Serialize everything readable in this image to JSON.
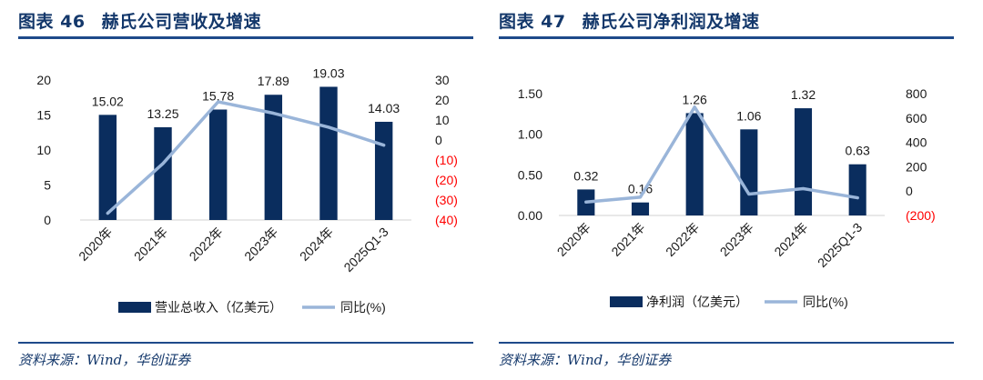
{
  "figures": [
    {
      "label": "图表 46",
      "title": "赫氏公司营收及增速",
      "source": "资料来源：Wind，华创证券",
      "colors": {
        "bar": "#0a2d5e",
        "line": "#9ab5d9",
        "negative_tick": "#ff0000",
        "rule": "#1e4a8a"
      },
      "chart_data": {
        "type": "bar+line",
        "categories": [
          "2020年",
          "2021年",
          "2022年",
          "2023年",
          "2024年",
          "2025Q1-3"
        ],
        "series": [
          {
            "name": "营业总收入（亿美元）",
            "type": "bar",
            "axis": "left",
            "values": [
              15.02,
              13.25,
              15.78,
              17.89,
              19.03,
              14.03
            ],
            "labels": [
              "15.02",
              "13.25",
              "15.78",
              "17.89",
              "19.03",
              "14.03"
            ]
          },
          {
            "name": "同比(%)",
            "type": "line",
            "axis": "right",
            "values": [
              -36.6,
              -11.8,
              19.1,
              13.4,
              6.4,
              -2.6
            ]
          }
        ],
        "y_left": {
          "lim": [
            0,
            20
          ],
          "ticks": [
            0,
            5,
            10,
            15,
            20
          ],
          "tick_labels": [
            "0",
            "5",
            "10",
            "15",
            "20"
          ]
        },
        "y_right": {
          "lim": [
            -40,
            30
          ],
          "ticks": [
            30,
            20,
            10,
            0,
            -10,
            -20,
            -30,
            -40
          ],
          "tick_labels": [
            "30",
            "20",
            "10",
            "0",
            "(10)",
            "(20)",
            "(30)",
            "(40)"
          ]
        },
        "legend_position": "bottom",
        "grid": false
      }
    },
    {
      "label": "图表 47",
      "title": "赫氏公司净利润及增速",
      "source": "资料来源：Wind，华创证券",
      "colors": {
        "bar": "#0a2d5e",
        "line": "#9ab5d9",
        "negative_tick": "#ff0000",
        "rule": "#1e4a8a"
      },
      "chart_data": {
        "type": "bar+line",
        "categories": [
          "2020年",
          "2021年",
          "2022年",
          "2023年",
          "2024年",
          "2025Q1-3"
        ],
        "series": [
          {
            "name": "净利润（亿美元）",
            "type": "bar",
            "axis": "left",
            "values": [
              0.32,
              0.16,
              1.26,
              1.06,
              1.32,
              0.63
            ],
            "labels": [
              "0.32",
              "0.16",
              "1.26",
              "1.06",
              "1.32",
              "0.63"
            ]
          },
          {
            "name": "同比(%)",
            "type": "line",
            "axis": "right",
            "values": [
              -90,
              -50,
              690,
              -25,
              20,
              -55
            ]
          }
        ],
        "y_left": {
          "lim": [
            0,
            1.5
          ],
          "ticks": [
            0,
            0.5,
            1.0,
            1.5
          ],
          "tick_labels": [
            "0.00",
            "0.50",
            "1.00",
            "1.50"
          ]
        },
        "y_right": {
          "lim": [
            -200,
            800
          ],
          "ticks": [
            800,
            600,
            400,
            200,
            0,
            -200
          ],
          "tick_labels": [
            "800",
            "600",
            "400",
            "200",
            "0",
            "(200)"
          ]
        },
        "legend_position": "bottom",
        "grid": false
      }
    }
  ]
}
